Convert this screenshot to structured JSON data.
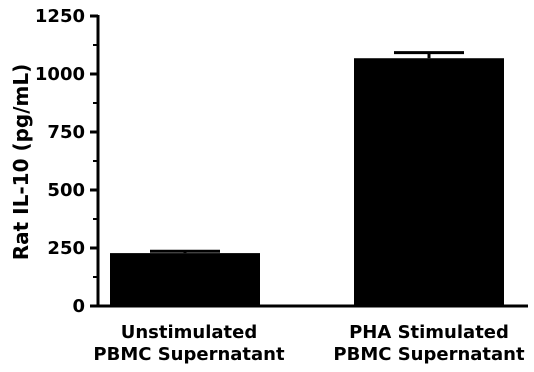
{
  "chart_data": {
    "type": "bar",
    "ylabel": "Rat IL-10 (pg/mL)",
    "ylim": [
      0,
      1250
    ],
    "yticks": [
      "0",
      "250",
      "500",
      "750",
      "1000",
      "1250"
    ],
    "categories": [
      [
        "Unstimulated",
        "PBMC Supernatant"
      ],
      [
        "PHA Stimulated",
        "PBMC Supernatant"
      ]
    ],
    "values": [
      228,
      1068
    ],
    "errors": [
      8,
      24
    ],
    "bar_color": "#000000",
    "grid": false
  }
}
